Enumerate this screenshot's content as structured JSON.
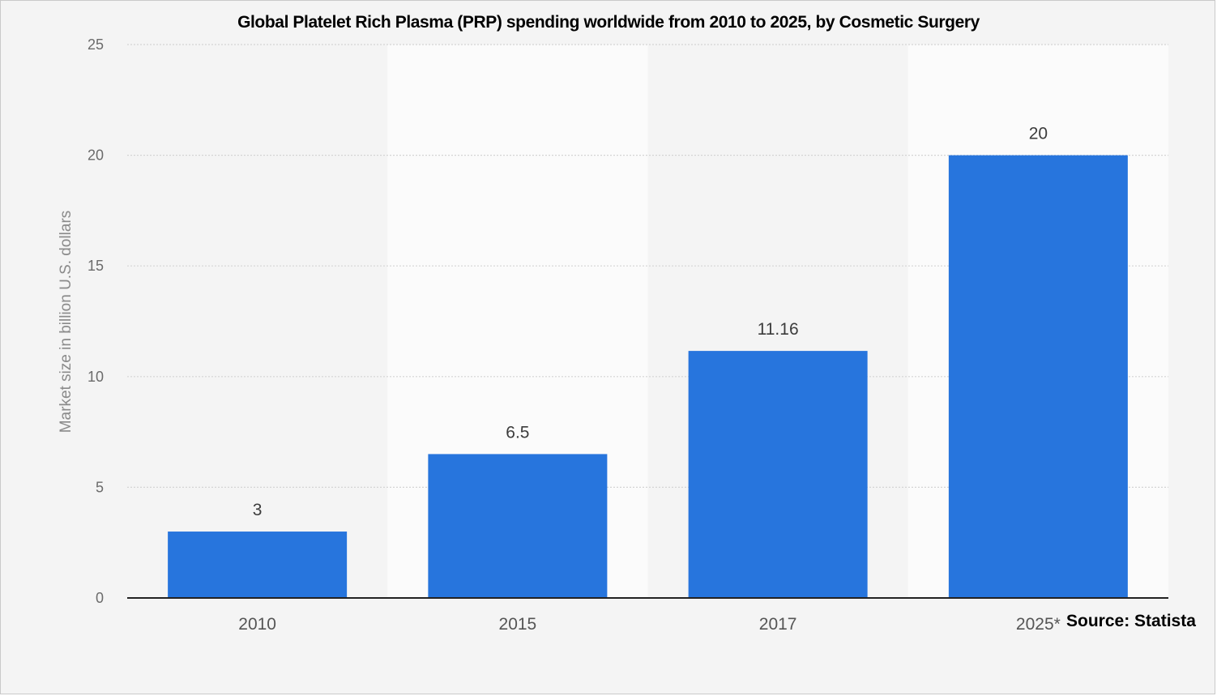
{
  "chart_data": {
    "type": "bar",
    "title": "Global Platelet Rich Plasma (PRP) spending worldwide from 2010 to 2025, by Cosmetic Surgery",
    "ylabel": "Market size in billion U.S. dollars",
    "categories": [
      "2010",
      "2015",
      "2017",
      "2025*"
    ],
    "values": [
      3,
      6.5,
      11.16,
      20
    ],
    "value_labels": [
      "3",
      "6.5",
      "11.16",
      "20"
    ],
    "ylim": [
      0,
      25
    ],
    "yticks": [
      0,
      5,
      10,
      15,
      20,
      25
    ],
    "grid": true,
    "source": "Source: Statista",
    "colors": {
      "bar": "#2775dd",
      "band": "#fbfbfb",
      "background": "#f4f4f4",
      "grid": "#d4d4d4",
      "axis": "#222222"
    }
  }
}
